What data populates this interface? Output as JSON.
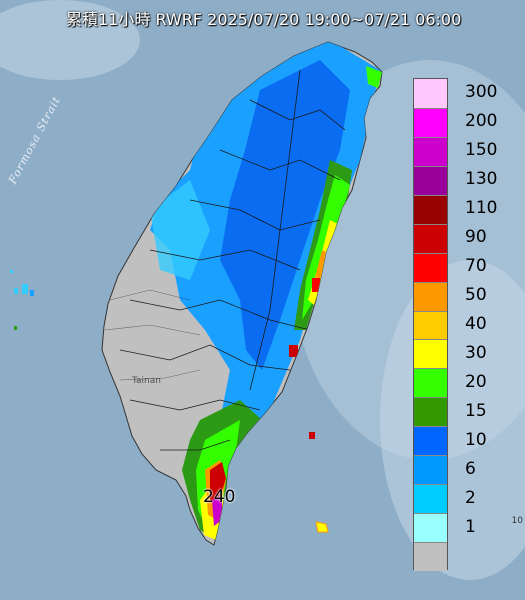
{
  "header": {
    "title": "累積11小時 RWRF 2025/07/20 19:00~07/21 06:00"
  },
  "map": {
    "strait_label": "Formosa Strait",
    "peak_value": "240",
    "city_label": "Tainan",
    "corner_label": "10"
  },
  "legend": {
    "levels": [
      {
        "label": "300",
        "color": "#ffc8ff"
      },
      {
        "label": "200",
        "color": "#ff00ff"
      },
      {
        "label": "150",
        "color": "#cc00cc"
      },
      {
        "label": "130",
        "color": "#990099"
      },
      {
        "label": "110",
        "color": "#990000"
      },
      {
        "label": "90",
        "color": "#cc0000"
      },
      {
        "label": "70",
        "color": "#ff0000"
      },
      {
        "label": "50",
        "color": "#ff9900"
      },
      {
        "label": "40",
        "color": "#ffcc00"
      },
      {
        "label": "30",
        "color": "#ffff00"
      },
      {
        "label": "20",
        "color": "#33ff00"
      },
      {
        "label": "15",
        "color": "#339900"
      },
      {
        "label": "10",
        "color": "#0066ff"
      },
      {
        "label": "6",
        "color": "#0099ff"
      },
      {
        "label": "2",
        "color": "#00ccff"
      },
      {
        "label": "1",
        "color": "#99ffff"
      },
      {
        "label": "",
        "color": "#c0c0c0"
      }
    ]
  }
}
